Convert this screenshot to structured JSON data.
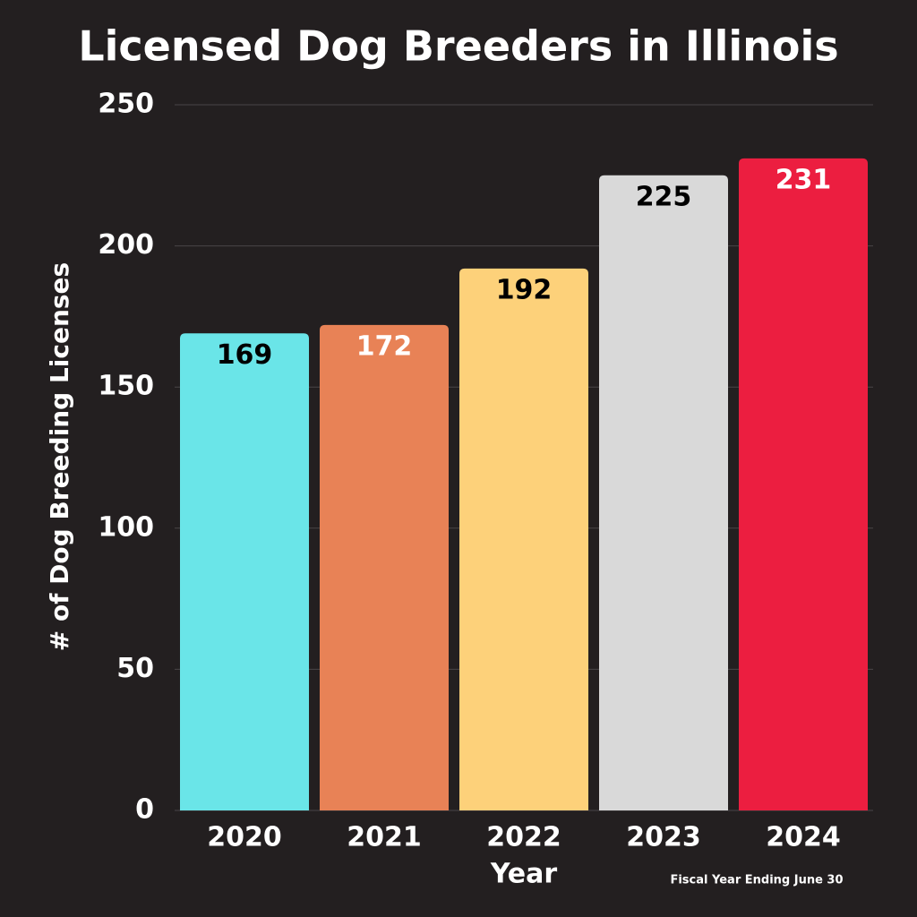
{
  "chart_data": {
    "type": "bar",
    "title": "Licensed Dog Breeders in Illinois",
    "categories": [
      "2020",
      "2021",
      "2022",
      "2023",
      "2024"
    ],
    "values": [
      169,
      172,
      192,
      225,
      231
    ],
    "colors": [
      "#6ae5e8",
      "#e88256",
      "#fdd17a",
      "#d9d9d9",
      "#ec1e40"
    ],
    "value_label_colors": [
      "#000000",
      "#ffffff",
      "#000000",
      "#000000",
      "#ffffff"
    ],
    "ylim": [
      0,
      250
    ],
    "yticks": [
      0,
      50,
      100,
      150,
      200,
      250
    ],
    "grid": true,
    "x_label": "Year",
    "y_label": "# of Dog Breeding Licenses",
    "note": "Fiscal Year Ending June 30"
  }
}
